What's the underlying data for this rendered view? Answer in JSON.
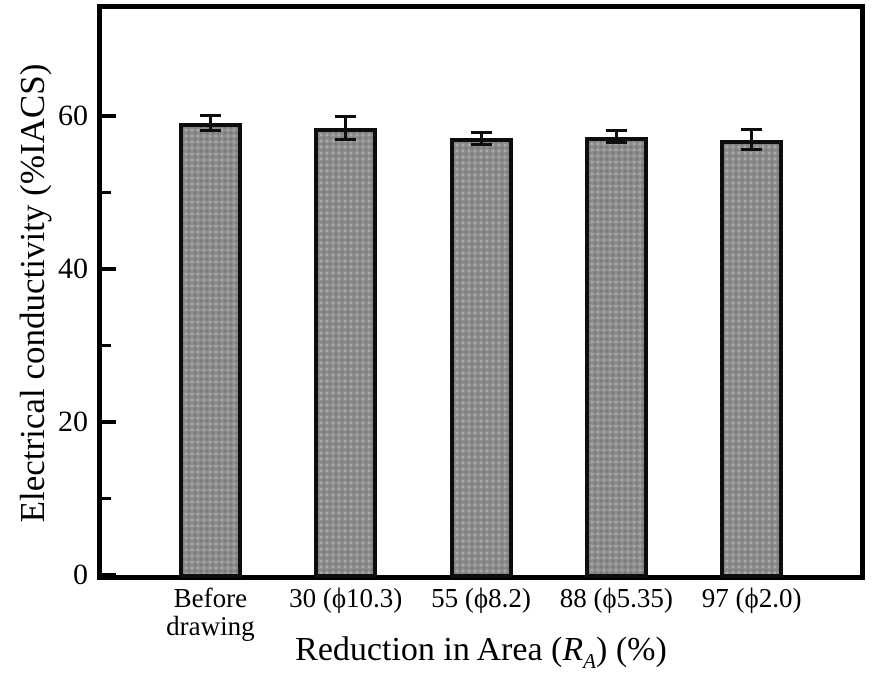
{
  "chart_data": {
    "type": "bar",
    "title": "",
    "categories": [
      [
        "Before",
        "drawing"
      ],
      [
        "30 (ϕ10.3)"
      ],
      [
        "55 (ϕ8.2)"
      ],
      [
        "88 (ϕ5.35)"
      ],
      [
        "97 (ϕ2.0)"
      ]
    ],
    "values": [
      59.1,
      58.5,
      57.1,
      57.3,
      56.9
    ],
    "error_bars": [
      1.2,
      1.7,
      1.0,
      1.0,
      1.5
    ],
    "ylabel": "Electrical conductivity (%IACS)",
    "xlabel_parts": {
      "prefix": "Reduction in Area (",
      "symbol": "R",
      "subscript": "A",
      "suffix": ") (%)"
    },
    "ylim": [
      0,
      74
    ],
    "yticks_major": [
      0,
      20,
      40,
      60
    ],
    "yticks_minor": [
      10,
      30,
      50
    ],
    "grid": false,
    "legend": null,
    "colors": {
      "bar_fill": "#8c8c8c",
      "bar_border": "#0d0d0d",
      "axis": "#000000",
      "text": "#000000",
      "background": "#ffffff"
    }
  }
}
